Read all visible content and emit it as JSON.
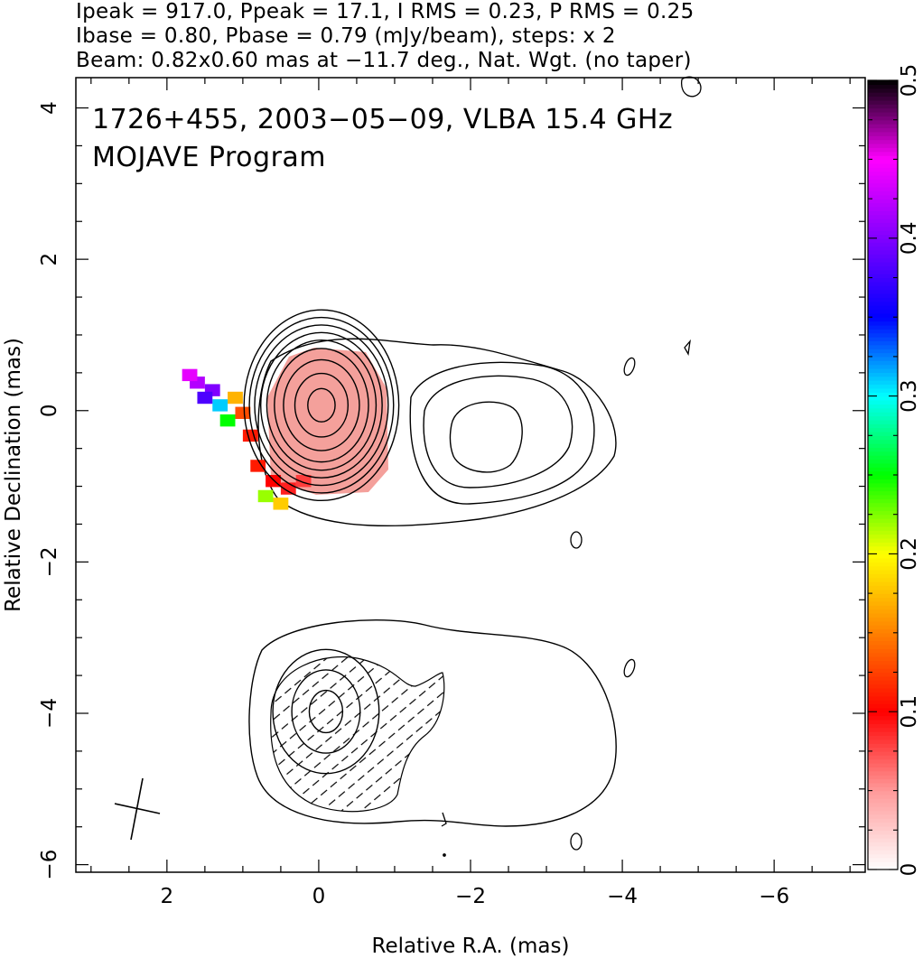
{
  "header": {
    "line1": "Ipeak = 917.0, Ppeak = 17.1, I RMS = 0.23, P RMS = 0.25",
    "line2": "Ibase = 0.80, Pbase = 0.79 (mJy/beam), steps: x 2",
    "line3": "Beam: 0.82x0.60 mas at −11.7 deg., Nat. Wgt. (no taper)"
  },
  "plot_text": {
    "line1": "1726+455, 2003−05−09, VLBA 15.4 GHz",
    "line2": "MOJAVE Program"
  },
  "chart_data": {
    "type": "heatmap",
    "xlabel": "Relative R.A. (mas)",
    "ylabel": "Relative Declination (mas)",
    "xlim": [
      3.2,
      -7.2
    ],
    "ylim": [
      -6.1,
      4.4
    ],
    "x_ticks": [
      "2",
      "0",
      "−2",
      "−4",
      "−6"
    ],
    "x_tick_values": [
      2,
      0,
      -2,
      -4,
      -6
    ],
    "y_ticks": [
      "4",
      "2",
      "0",
      "−2",
      "−4",
      "−6"
    ],
    "y_tick_values": [
      4,
      2,
      0,
      -2,
      -4,
      -6
    ],
    "colorbar": {
      "range": [
        0,
        0.5
      ],
      "tick_labels": [
        "0",
        "0.1",
        "0.2",
        "0.3",
        "0.4",
        "0.5"
      ],
      "tick_values": [
        0,
        0.1,
        0.2,
        0.3,
        0.4,
        0.5
      ],
      "colors": [
        "#ffffff",
        "#ff9999",
        "#ff0000",
        "#ff8000",
        "#ffff00",
        "#00ff00",
        "#00ffff",
        "#0000ff",
        "#8000ff",
        "#ff00ff",
        "#000000"
      ]
    },
    "upper_map": {
      "center": [
        0,
        0
      ],
      "contour_radii": [
        [
          0.18,
          0.22
        ],
        [
          0.35,
          0.42
        ],
        [
          0.5,
          0.6
        ],
        [
          0.62,
          0.75
        ],
        [
          0.72,
          0.86
        ],
        [
          0.8,
          0.96
        ],
        [
          0.88,
          1.06
        ],
        [
          0.95,
          1.16
        ],
        [
          1.02,
          1.26
        ]
      ],
      "fractional_pol_core": {
        "center": [
          0.05,
          -0.2
        ],
        "rx": 0.65,
        "ry": 0.75,
        "value": 0.03
      },
      "fractional_pol_cells": [
        {
          "x": 0.2,
          "y": -0.9,
          "v": 0.08
        },
        {
          "x": 0.4,
          "y": -1.0,
          "v": 0.09
        },
        {
          "x": 0.6,
          "y": -0.9,
          "v": 0.1
        },
        {
          "x": 0.8,
          "y": -0.7,
          "v": 0.11
        },
        {
          "x": 0.9,
          "y": -0.3,
          "v": 0.11
        },
        {
          "x": 1.0,
          "y": 0.0,
          "v": 0.13
        },
        {
          "x": 1.1,
          "y": 0.2,
          "v": 0.17
        },
        {
          "x": 0.5,
          "y": -1.2,
          "v": 0.18
        },
        {
          "x": 0.7,
          "y": -1.1,
          "v": 0.22
        },
        {
          "x": 1.2,
          "y": -0.1,
          "v": 0.25
        },
        {
          "x": 1.3,
          "y": 0.1,
          "v": 0.31
        },
        {
          "x": 1.4,
          "y": 0.3,
          "v": 0.4
        },
        {
          "x": 1.5,
          "y": 0.2,
          "v": 0.38
        },
        {
          "x": 1.6,
          "y": 0.4,
          "v": 0.42
        },
        {
          "x": 1.7,
          "y": 0.5,
          "v": 0.44
        }
      ]
    },
    "lower_map": {
      "center": [
        0,
        -4
      ],
      "contour_radii": [
        [
          0.22,
          0.28
        ],
        [
          0.45,
          0.55
        ],
        [
          0.7,
          0.82
        ]
      ]
    },
    "beam": {
      "major": 0.82,
      "minor": 0.6,
      "pa_deg": -11.7,
      "x": 2.2,
      "y": -5.1
    }
  }
}
